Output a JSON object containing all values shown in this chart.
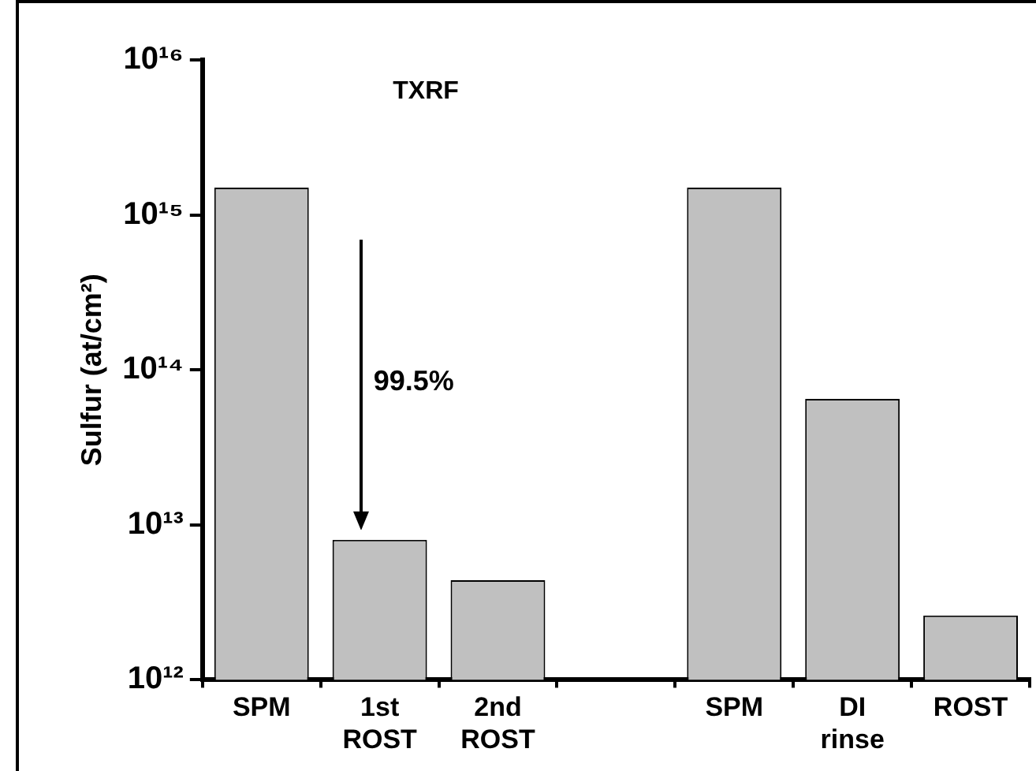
{
  "chart_data": {
    "type": "bar",
    "title": "TXRF",
    "ylabel": "Sulfur (at/cm²)",
    "categories": [
      "SPM",
      "1st ROST",
      "2nd ROST",
      null,
      "SPM",
      "DI rinse",
      "ROST"
    ],
    "values": [
      1500000000000000.0,
      8000000000000.0,
      4400000000000.0,
      null,
      1500000000000000.0,
      65000000000000.0,
      2600000000000.0
    ],
    "color": "#c0c0c0",
    "log": true,
    "ylim": [
      1000000000000.0,
      1e+16
    ],
    "yticks": [
      {
        "value": 1000000000000.0,
        "label": "10¹²"
      },
      {
        "value": 10000000000000.0,
        "label": "10¹³"
      },
      {
        "value": 100000000000000.0,
        "label": "10¹⁴"
      },
      {
        "value": 1000000000000000.0,
        "label": "10¹⁵"
      },
      {
        "value": 1e+16,
        "label": "10¹⁶"
      }
    ],
    "grid": false,
    "legend": false,
    "annotations": [
      "99.5%"
    ]
  }
}
